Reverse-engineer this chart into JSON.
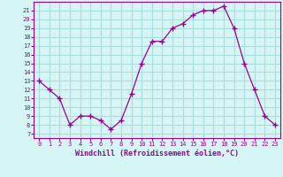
{
  "x": [
    0,
    1,
    2,
    3,
    4,
    5,
    6,
    7,
    8,
    9,
    10,
    11,
    12,
    13,
    14,
    15,
    16,
    17,
    18,
    19,
    20,
    21,
    22,
    23
  ],
  "y": [
    13,
    12,
    11,
    8,
    9,
    9,
    8.5,
    7.5,
    8.5,
    11.5,
    15,
    17.5,
    17.5,
    19,
    19.5,
    20.5,
    21,
    21,
    21.5,
    19,
    15,
    12,
    9,
    8
  ],
  "line_color": "#990099",
  "marker": "+",
  "bg_color": "#d6f5f5",
  "grid_color": "#aadddd",
  "xlabel": "Windchill (Refroidissement éolien,°C)",
  "xlabel_color": "#990099",
  "ylabel_ticks": [
    7,
    8,
    9,
    10,
    11,
    12,
    13,
    14,
    15,
    16,
    17,
    18,
    19,
    20,
    21
  ],
  "ylim": [
    6.5,
    22
  ],
  "xlim": [
    -0.5,
    23.5
  ],
  "tick_color": "#990099"
}
